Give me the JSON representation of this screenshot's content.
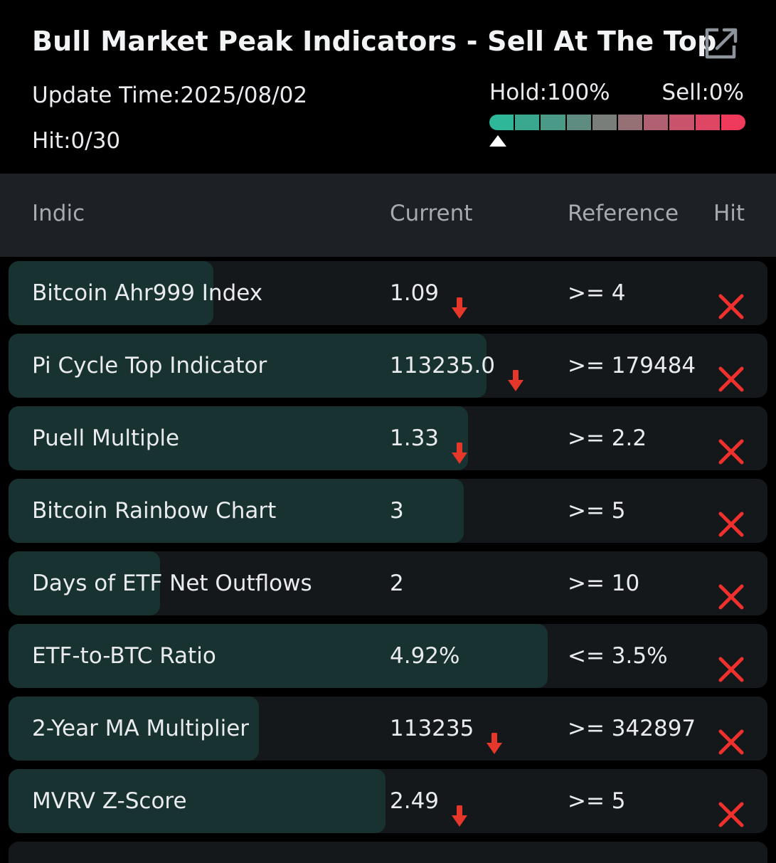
{
  "header": {
    "title": "Bull Market Peak Indicators - Sell At The Top",
    "share_icon": "share-icon",
    "update_time": "Update Time:2025/08/02",
    "hit_count": "Hit:0/30",
    "hold_label": "Hold:100%",
    "sell_label": "Sell:0%",
    "gauge": {
      "hold_fraction": 1.0,
      "segments": [
        "#2fb79a",
        "#3aa88f",
        "#4a9a87",
        "#5f8c80",
        "#7a7e7a",
        "#957176",
        "#b06070",
        "#c8536a",
        "#de4764",
        "#f03a5c"
      ]
    }
  },
  "table": {
    "headers": {
      "indicator": "Indic",
      "current": "Current",
      "reference": "Reference",
      "hit": "Hit"
    },
    "rows": [
      {
        "name": "Bitcoin Ahr999 Index",
        "current": "1.09",
        "down_arrow": true,
        "reference": ">= 4",
        "hit": false,
        "progress": 0.27
      },
      {
        "name": "Pi Cycle Top Indicator",
        "current": "113235.0",
        "down_arrow": true,
        "reference": ">= 179484",
        "hit": false,
        "progress": 0.63
      },
      {
        "name": "Puell Multiple",
        "current": "1.33",
        "down_arrow": true,
        "reference": ">= 2.2",
        "hit": false,
        "progress": 0.605
      },
      {
        "name": "Bitcoin Rainbow Chart",
        "current": "3",
        "down_arrow": false,
        "reference": ">= 5",
        "hit": false,
        "progress": 0.6
      },
      {
        "name": "Days of ETF Net Outflows",
        "current": "2",
        "down_arrow": false,
        "reference": ">= 10",
        "hit": false,
        "progress": 0.2
      },
      {
        "name": "ETF-to-BTC Ratio",
        "current": "4.92%",
        "down_arrow": false,
        "reference": "<= 3.5%",
        "hit": false,
        "progress": 0.71
      },
      {
        "name": "2-Year MA Multiplier",
        "current": "113235",
        "down_arrow": true,
        "reference": ">= 342897",
        "hit": false,
        "progress": 0.33
      },
      {
        "name": "MVRV Z-Score",
        "current": "2.49",
        "down_arrow": true,
        "reference": ">= 5",
        "hit": false,
        "progress": 0.497
      }
    ]
  },
  "colors": {
    "background": "#000000",
    "row_bg": "#15181b",
    "row_fill": "#173231",
    "down_arrow": "#e5372a",
    "miss_x": "#f0302c"
  }
}
